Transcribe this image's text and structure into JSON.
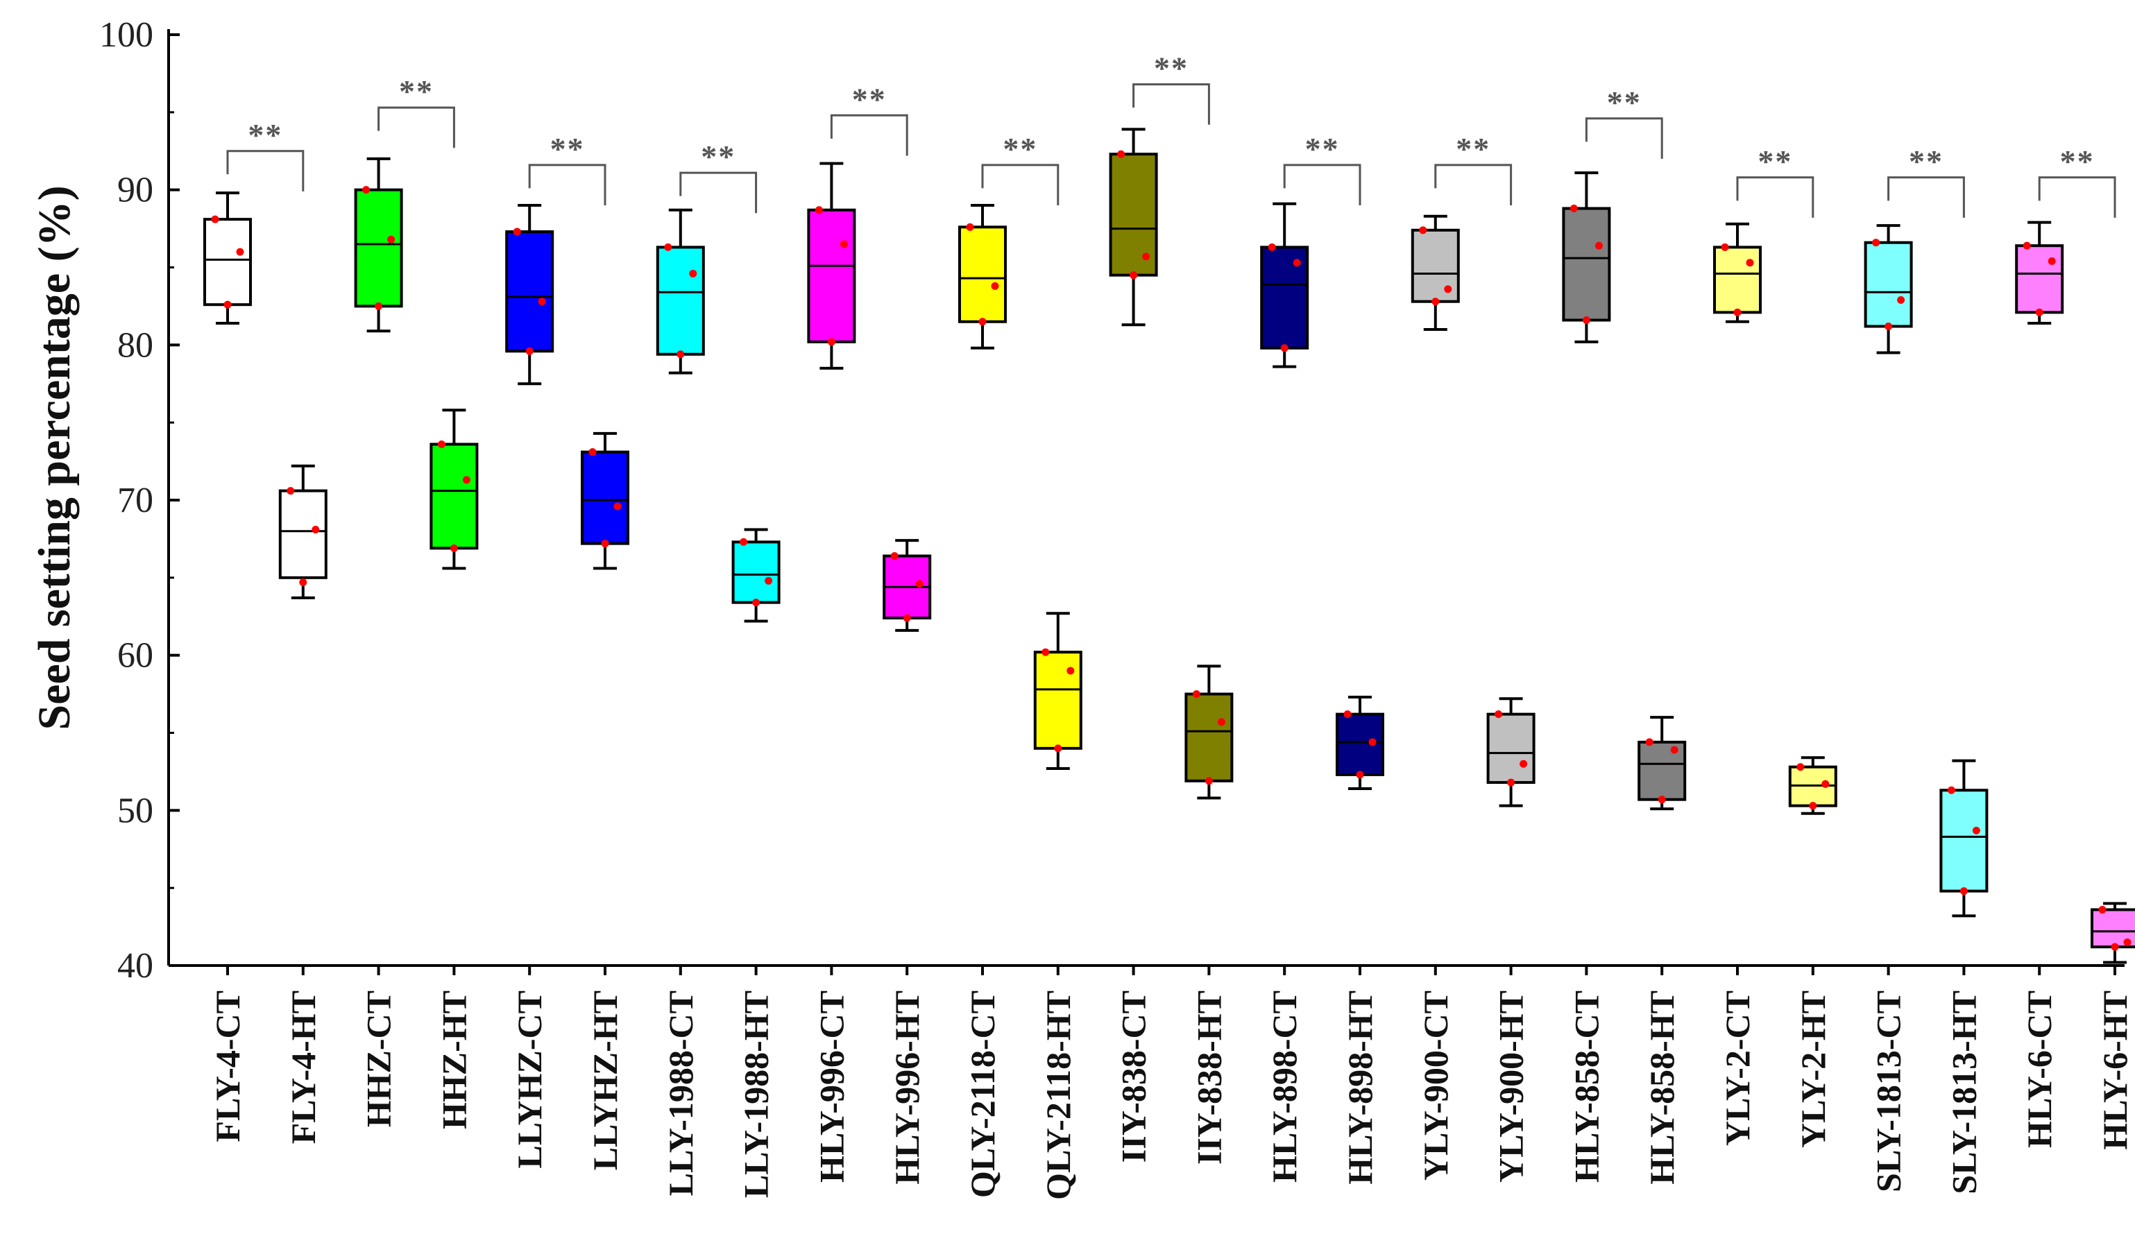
{
  "chart_data": {
    "type": "box",
    "title": "",
    "xlabel": "",
    "ylabel": "Seed setting percentage (%)",
    "ylim": [
      40,
      100
    ],
    "yticks": [
      40,
      50,
      60,
      70,
      80,
      90,
      100
    ],
    "categories": [
      "FLY-4-CT",
      "FLY-4-HT",
      "HHZ-CT",
      "HHZ-HT",
      "LLYHZ-CT",
      "LLYHZ-HT",
      "LLY-1988-CT",
      "LLY-1988-HT",
      "HLY-996-CT",
      "HLY-996-HT",
      "QLY-2118-CT",
      "QLY-2118-HT",
      "IIY-838-CT",
      "IIY-838-HT",
      "HLY-898-CT",
      "HLY-898-HT",
      "YLY-900-CT",
      "YLY-900-HT",
      "HLY-858-CT",
      "HLY-858-HT",
      "YLY-2-CT",
      "YLY-2-HT",
      "SLY-1813-CT",
      "SLY-1813-HT",
      "HLY-6-CT",
      "HLY-6-HT"
    ],
    "boxes": [
      {
        "label": "FLY-4-CT",
        "min": 81.4,
        "q1": 82.6,
        "median": 85.5,
        "q3": 88.1,
        "max": 89.8,
        "color": "#ffffff",
        "points": [
          88.1,
          86.0,
          82.6
        ]
      },
      {
        "label": "FLY-4-HT",
        "min": 63.7,
        "q1": 65.0,
        "median": 68.0,
        "q3": 70.6,
        "max": 72.2,
        "color": "#ffffff",
        "points": [
          70.6,
          68.1,
          64.7
        ]
      },
      {
        "label": "HHZ-CT",
        "min": 80.9,
        "q1": 82.5,
        "median": 86.5,
        "q3": 90.0,
        "max": 92.0,
        "color": "#00ff00",
        "points": [
          90.0,
          86.8,
          82.5
        ]
      },
      {
        "label": "HHZ-HT",
        "min": 65.6,
        "q1": 66.9,
        "median": 70.6,
        "q3": 73.6,
        "max": 75.8,
        "color": "#00ff00",
        "points": [
          73.6,
          71.3,
          66.9
        ]
      },
      {
        "label": "LLYHZ-CT",
        "min": 77.5,
        "q1": 79.6,
        "median": 83.1,
        "q3": 87.3,
        "max": 89.0,
        "color": "#0000ff",
        "points": [
          87.3,
          82.8,
          79.6
        ]
      },
      {
        "label": "LLYHZ-HT",
        "min": 65.6,
        "q1": 67.2,
        "median": 70.0,
        "q3": 73.1,
        "max": 74.3,
        "color": "#0000ff",
        "points": [
          73.1,
          69.6,
          67.2
        ]
      },
      {
        "label": "LLY-1988-CT",
        "min": 78.2,
        "q1": 79.4,
        "median": 83.4,
        "q3": 86.3,
        "max": 88.7,
        "color": "#00ffff",
        "points": [
          86.3,
          84.6,
          79.4
        ]
      },
      {
        "label": "LLY-1988-HT",
        "min": 62.2,
        "q1": 63.4,
        "median": 65.2,
        "q3": 67.3,
        "max": 68.1,
        "color": "#00ffff",
        "points": [
          67.3,
          64.8,
          63.4
        ]
      },
      {
        "label": "HLY-996-CT",
        "min": 78.5,
        "q1": 80.2,
        "median": 85.1,
        "q3": 88.7,
        "max": 91.7,
        "color": "#ff00ff",
        "points": [
          88.7,
          86.5,
          80.2
        ]
      },
      {
        "label": "HLY-996-HT",
        "min": 61.6,
        "q1": 62.4,
        "median": 64.4,
        "q3": 66.4,
        "max": 67.4,
        "color": "#ff00ff",
        "points": [
          66.4,
          64.6,
          62.4
        ]
      },
      {
        "label": "QLY-2118-CT",
        "min": 79.8,
        "q1": 81.5,
        "median": 84.3,
        "q3": 87.6,
        "max": 89.0,
        "color": "#ffff00",
        "points": [
          87.6,
          83.8,
          81.5
        ]
      },
      {
        "label": "QLY-2118-HT",
        "min": 52.7,
        "q1": 54.0,
        "median": 57.8,
        "q3": 60.2,
        "max": 62.7,
        "color": "#ffff00",
        "points": [
          60.2,
          59.0,
          54.0
        ]
      },
      {
        "label": "IIY-838-CT",
        "min": 81.3,
        "q1": 84.5,
        "median": 87.5,
        "q3": 92.3,
        "max": 93.9,
        "color": "#808000",
        "points": [
          92.3,
          85.7,
          84.5
        ]
      },
      {
        "label": "IIY-838-HT",
        "min": 50.8,
        "q1": 51.9,
        "median": 55.1,
        "q3": 57.5,
        "max": 59.3,
        "color": "#808000",
        "points": [
          57.5,
          55.7,
          51.9
        ]
      },
      {
        "label": "HLY-898-CT",
        "min": 78.6,
        "q1": 79.8,
        "median": 83.9,
        "q3": 86.3,
        "max": 89.1,
        "color": "#000080",
        "points": [
          86.3,
          85.3,
          79.8
        ]
      },
      {
        "label": "HLY-898-HT",
        "min": 51.4,
        "q1": 52.3,
        "median": 54.4,
        "q3": 56.2,
        "max": 57.3,
        "color": "#000080",
        "points": [
          56.2,
          54.4,
          52.3
        ]
      },
      {
        "label": "YLY-900-CT",
        "min": 81.0,
        "q1": 82.8,
        "median": 84.6,
        "q3": 87.4,
        "max": 88.3,
        "color": "#c0c0c0",
        "points": [
          87.4,
          83.6,
          82.8
        ]
      },
      {
        "label": "YLY-900-HT",
        "min": 50.3,
        "q1": 51.8,
        "median": 53.7,
        "q3": 56.2,
        "max": 57.2,
        "color": "#c0c0c0",
        "points": [
          56.2,
          53.0,
          51.8
        ]
      },
      {
        "label": "HLY-858-CT",
        "min": 80.2,
        "q1": 81.6,
        "median": 85.6,
        "q3": 88.8,
        "max": 91.1,
        "color": "#808080",
        "points": [
          88.8,
          86.4,
          81.6
        ]
      },
      {
        "label": "HLY-858-HT",
        "min": 50.1,
        "q1": 50.7,
        "median": 53.0,
        "q3": 54.4,
        "max": 56.0,
        "color": "#808080",
        "points": [
          54.4,
          53.9,
          50.7
        ]
      },
      {
        "label": "YLY-2-CT",
        "min": 81.5,
        "q1": 82.1,
        "median": 84.6,
        "q3": 86.3,
        "max": 87.8,
        "color": "#ffff80",
        "points": [
          86.3,
          85.3,
          82.1
        ]
      },
      {
        "label": "YLY-2-HT",
        "min": 49.8,
        "q1": 50.3,
        "median": 51.6,
        "q3": 52.8,
        "max": 53.4,
        "color": "#ffff80",
        "points": [
          52.8,
          51.7,
          50.3
        ]
      },
      {
        "label": "SLY-1813-CT",
        "min": 79.5,
        "q1": 81.2,
        "median": 83.4,
        "q3": 86.6,
        "max": 87.7,
        "color": "#80ffff",
        "points": [
          86.6,
          82.9,
          81.2
        ]
      },
      {
        "label": "SLY-1813-HT",
        "min": 43.2,
        "q1": 44.8,
        "median": 48.3,
        "q3": 51.3,
        "max": 53.2,
        "color": "#80ffff",
        "points": [
          51.3,
          48.7,
          44.8
        ]
      },
      {
        "label": "HLY-6-CT",
        "min": 81.4,
        "q1": 82.1,
        "median": 84.6,
        "q3": 86.4,
        "max": 87.9,
        "color": "#ff80ff",
        "points": [
          86.4,
          85.4,
          82.1
        ]
      },
      {
        "label": "HLY-6-HT",
        "min": 40.2,
        "q1": 41.2,
        "median": 42.2,
        "q3": 43.6,
        "max": 44.0,
        "color": "#ff80ff",
        "points": [
          43.6,
          41.5,
          41.2
        ]
      }
    ],
    "point_color": "#ff0000",
    "significance": [
      {
        "pair": [
          0,
          1
        ],
        "label": "**",
        "level": 92.5
      },
      {
        "pair": [
          2,
          3
        ],
        "label": "**",
        "level": 95.3
      },
      {
        "pair": [
          4,
          5
        ],
        "label": "**",
        "level": 91.6
      },
      {
        "pair": [
          6,
          7
        ],
        "label": "**",
        "level": 91.1
      },
      {
        "pair": [
          8,
          9
        ],
        "label": "**",
        "level": 94.8
      },
      {
        "pair": [
          10,
          11
        ],
        "label": "**",
        "level": 91.6
      },
      {
        "pair": [
          12,
          13
        ],
        "label": "**",
        "level": 96.8
      },
      {
        "pair": [
          14,
          15
        ],
        "label": "**",
        "level": 91.6
      },
      {
        "pair": [
          16,
          17
        ],
        "label": "**",
        "level": 91.6
      },
      {
        "pair": [
          18,
          19
        ],
        "label": "**",
        "level": 94.6
      },
      {
        "pair": [
          20,
          21
        ],
        "label": "**",
        "level": 90.8
      },
      {
        "pair": [
          22,
          23
        ],
        "label": "**",
        "level": 90.8
      },
      {
        "pair": [
          24,
          25
        ],
        "label": "**",
        "level": 90.8
      }
    ]
  }
}
